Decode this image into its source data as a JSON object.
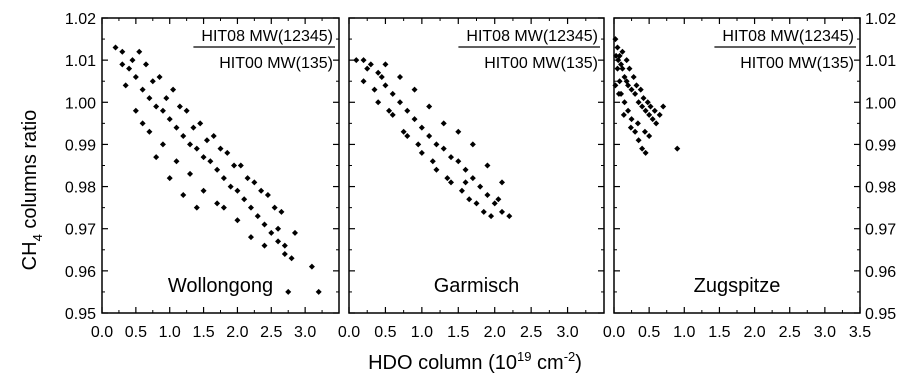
{
  "figure": {
    "xlabel_main": "HDO column (10",
    "xlabel_exp1": "19",
    "xlabel_unit": " cm",
    "xlabel_exp2": "-2",
    "xlabel_close": ")",
    "ylabel_ch": "CH",
    "ylabel_sub": "4",
    "ylabel_rest": " columns ratio"
  },
  "chart_data": [
    {
      "type": "scatter",
      "panel": "Wollongong",
      "site_label": "Wollongong",
      "ratio_numerator": "HIT08 MW(12345)",
      "ratio_denominator": "HIT00 MW(135)",
      "xlim": [
        0.0,
        3.5
      ],
      "ylim": [
        0.95,
        1.02
      ],
      "xticks": [
        "0.0",
        "0.5",
        "1.0",
        "1.5",
        "2.0",
        "2.5",
        "3.0"
      ],
      "yticks": [
        "0.95",
        "0.96",
        "0.97",
        "0.98",
        "0.99",
        "1.00",
        "1.01",
        "1.02"
      ],
      "marker_color": "#000000",
      "points": [
        [
          0.2,
          1.013
        ],
        [
          0.3,
          1.012
        ],
        [
          0.4,
          1.008
        ],
        [
          0.5,
          1.006
        ],
        [
          0.6,
          1.003
        ],
        [
          0.7,
          1.001
        ],
        [
          0.8,
          0.999
        ],
        [
          0.9,
          0.998
        ],
        [
          1.0,
          0.996
        ],
        [
          1.1,
          0.994
        ],
        [
          1.2,
          0.992
        ],
        [
          1.3,
          0.99
        ],
        [
          1.4,
          0.989
        ],
        [
          1.5,
          0.987
        ],
        [
          1.6,
          0.986
        ],
        [
          1.7,
          0.984
        ],
        [
          1.8,
          0.982
        ],
        [
          1.9,
          0.98
        ],
        [
          2.0,
          0.979
        ],
        [
          2.1,
          0.977
        ],
        [
          2.2,
          0.975
        ],
        [
          2.3,
          0.973
        ],
        [
          2.4,
          0.971
        ],
        [
          2.5,
          0.969
        ],
        [
          2.6,
          0.967
        ],
        [
          2.7,
          0.964
        ],
        [
          2.8,
          0.963
        ],
        [
          3.1,
          0.961
        ],
        [
          2.75,
          0.955
        ],
        [
          3.2,
          0.955
        ],
        [
          0.35,
          1.004
        ],
        [
          0.5,
          0.998
        ],
        [
          0.7,
          0.993
        ],
        [
          0.9,
          0.99
        ],
        [
          1.1,
          0.986
        ],
        [
          1.3,
          0.983
        ],
        [
          1.5,
          0.979
        ],
        [
          1.7,
          0.976
        ],
        [
          0.45,
          1.01
        ],
        [
          0.65,
          1.009
        ],
        [
          0.85,
          1.006
        ],
        [
          1.05,
          1.003
        ],
        [
          1.25,
          0.998
        ],
        [
          1.45,
          0.995
        ],
        [
          1.65,
          0.992
        ],
        [
          1.85,
          0.988
        ],
        [
          2.05,
          0.985
        ],
        [
          2.25,
          0.981
        ],
        [
          2.45,
          0.978
        ],
        [
          2.65,
          0.974
        ],
        [
          2.85,
          0.969
        ],
        [
          2.0,
          0.972
        ],
        [
          2.2,
          0.968
        ],
        [
          2.4,
          0.966
        ],
        [
          1.8,
          0.975
        ],
        [
          1.0,
          0.982
        ],
        [
          0.8,
          0.987
        ],
        [
          0.6,
          0.995
        ],
        [
          1.2,
          0.978
        ],
        [
          1.4,
          0.975
        ],
        [
          0.3,
          1.009
        ],
        [
          0.55,
          1.012
        ],
        [
          0.75,
          1.005
        ],
        [
          0.95,
          1.001
        ],
        [
          1.15,
          0.999
        ],
        [
          1.35,
          0.994
        ],
        [
          1.55,
          0.991
        ],
        [
          1.75,
          0.989
        ],
        [
          1.95,
          0.985
        ],
        [
          2.15,
          0.982
        ],
        [
          2.35,
          0.979
        ],
        [
          2.55,
          0.975
        ],
        [
          2.6,
          0.97
        ],
        [
          2.7,
          0.966
        ]
      ]
    },
    {
      "type": "scatter",
      "panel": "Garmisch",
      "site_label": "Garmisch",
      "ratio_numerator": "HIT08 MW(12345)",
      "ratio_denominator": "HIT00 MW(135)",
      "xlim": [
        0.0,
        3.5
      ],
      "ylim": [
        0.95,
        1.02
      ],
      "xticks": [
        "0.0",
        "0.5",
        "1.0",
        "1.5",
        "2.0",
        "2.5",
        "3.0"
      ],
      "yticks": [
        "0.95",
        "0.96",
        "0.97",
        "0.98",
        "0.99",
        "1.00",
        "1.01",
        "1.02"
      ],
      "marker_color": "#000000",
      "points": [
        [
          0.1,
          1.01
        ],
        [
          0.2,
          1.01
        ],
        [
          0.3,
          1.009
        ],
        [
          0.4,
          1.007
        ],
        [
          0.5,
          1.004
        ],
        [
          0.6,
          1.002
        ],
        [
          0.7,
          1.0
        ],
        [
          0.8,
          0.998
        ],
        [
          0.9,
          0.996
        ],
        [
          1.0,
          0.994
        ],
        [
          1.1,
          0.992
        ],
        [
          1.2,
          0.99
        ],
        [
          1.3,
          0.989
        ],
        [
          1.4,
          0.987
        ],
        [
          1.5,
          0.986
        ],
        [
          1.6,
          0.984
        ],
        [
          1.7,
          0.982
        ],
        [
          1.8,
          0.98
        ],
        [
          1.9,
          0.978
        ],
        [
          2.0,
          0.976
        ],
        [
          2.1,
          0.974
        ],
        [
          2.2,
          0.973
        ],
        [
          0.2,
          1.005
        ],
        [
          0.35,
          1.003
        ],
        [
          0.55,
          0.998
        ],
        [
          0.75,
          0.993
        ],
        [
          0.95,
          0.99
        ],
        [
          1.15,
          0.986
        ],
        [
          1.35,
          0.982
        ],
        [
          1.55,
          0.979
        ],
        [
          1.75,
          0.976
        ],
        [
          1.95,
          0.973
        ],
        [
          0.5,
          1.009
        ],
        [
          0.7,
          1.006
        ],
        [
          0.9,
          1.003
        ],
        [
          1.1,
          0.999
        ],
        [
          1.3,
          0.995
        ],
        [
          1.5,
          0.993
        ],
        [
          1.7,
          0.99
        ],
        [
          1.9,
          0.985
        ],
        [
          2.1,
          0.981
        ],
        [
          2.05,
          0.977
        ],
        [
          1.85,
          0.974
        ],
        [
          1.65,
          0.977
        ],
        [
          0.4,
          1.0
        ],
        [
          0.6,
          0.997
        ],
        [
          0.8,
          0.992
        ],
        [
          1.0,
          0.988
        ],
        [
          1.2,
          0.984
        ],
        [
          1.4,
          0.981
        ],
        [
          1.6,
          0.981
        ],
        [
          0.25,
          1.008
        ],
        [
          0.45,
          1.006
        ]
      ]
    },
    {
      "type": "scatter",
      "panel": "Zugspitze",
      "site_label": "Zugspitze",
      "ratio_numerator": "HIT08 MW(12345)",
      "ratio_denominator": "HIT00 MW(135)",
      "xlim": [
        0.0,
        3.5
      ],
      "ylim": [
        0.95,
        1.02
      ],
      "xticks": [
        "0.0",
        "0.5",
        "1.0",
        "1.5",
        "2.0",
        "2.5",
        "3.0",
        "3.5"
      ],
      "yticks": [
        "0.95",
        "0.96",
        "0.97",
        "0.98",
        "0.99",
        "1.00",
        "1.01",
        "1.02"
      ],
      "marker_color": "#000000",
      "points": [
        [
          0.02,
          1.015
        ],
        [
          0.05,
          1.013
        ],
        [
          0.08,
          1.011
        ],
        [
          0.1,
          1.009
        ],
        [
          0.12,
          1.008
        ],
        [
          0.15,
          1.006
        ],
        [
          0.18,
          1.005
        ],
        [
          0.2,
          1.004
        ],
        [
          0.25,
          1.003
        ],
        [
          0.3,
          1.002
        ],
        [
          0.35,
          1.0
        ],
        [
          0.4,
          0.999
        ],
        [
          0.45,
          0.998
        ],
        [
          0.5,
          0.997
        ],
        [
          0.55,
          0.996
        ],
        [
          0.6,
          0.995
        ],
        [
          0.65,
          0.997
        ],
        [
          0.7,
          0.999
        ],
        [
          0.9,
          0.989
        ],
        [
          0.05,
          1.008
        ],
        [
          0.08,
          1.005
        ],
        [
          0.1,
          1.002
        ],
        [
          0.15,
          1.0
        ],
        [
          0.2,
          0.998
        ],
        [
          0.25,
          0.996
        ],
        [
          0.3,
          0.993
        ],
        [
          0.35,
          0.991
        ],
        [
          0.4,
          0.989
        ],
        [
          0.45,
          0.988
        ],
        [
          0.5,
          0.992
        ],
        [
          0.03,
          1.011
        ],
        [
          0.06,
          1.01
        ],
        [
          0.12,
          1.012
        ],
        [
          0.18,
          1.01
        ],
        [
          0.22,
          1.008
        ],
        [
          0.28,
          1.006
        ],
        [
          0.32,
          1.004
        ],
        [
          0.38,
          1.003
        ],
        [
          0.42,
          1.001
        ],
        [
          0.48,
          1.0
        ],
        [
          0.52,
          0.999
        ],
        [
          0.58,
          0.998
        ],
        [
          0.02,
          1.004
        ],
        [
          0.07,
          1.002
        ],
        [
          0.14,
          0.997
        ],
        [
          0.24,
          0.994
        ],
        [
          0.34,
          0.995
        ],
        [
          0.44,
          0.993
        ]
      ]
    }
  ]
}
